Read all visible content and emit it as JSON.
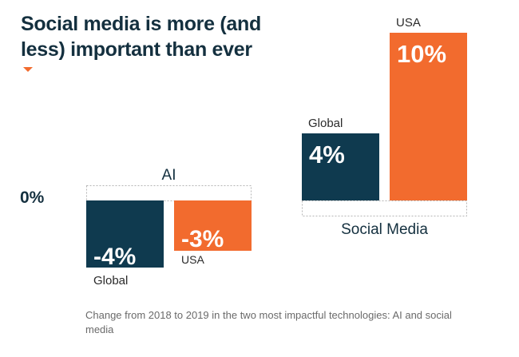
{
  "chart_data": {
    "type": "bar",
    "title": "Social media is more (and less) important than ever",
    "zero_label": "0%",
    "groups": [
      {
        "name": "AI",
        "bars": [
          {
            "label": "Global",
            "value": -4,
            "display": "-4%",
            "color": "#0f3a4f"
          },
          {
            "label": "USA",
            "value": -3,
            "display": "-3%",
            "color": "#f26b2e"
          }
        ]
      },
      {
        "name": "Social Media",
        "bars": [
          {
            "label": "Global",
            "value": 4,
            "display": "4%",
            "color": "#0f3a4f"
          },
          {
            "label": "USA",
            "value": 10,
            "display": "10%",
            "color": "#f26b2e"
          }
        ]
      }
    ],
    "caption": "Change from 2018 to 2019 in the two most impactful technologies: AI and social media"
  }
}
